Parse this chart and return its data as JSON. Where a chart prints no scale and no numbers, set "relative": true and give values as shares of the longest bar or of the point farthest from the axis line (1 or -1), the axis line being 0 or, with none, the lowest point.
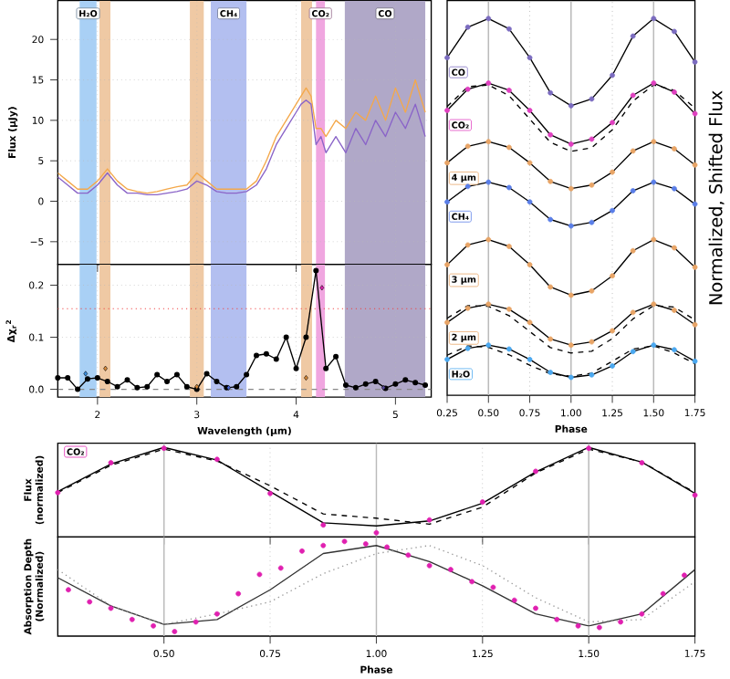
{
  "chart_data": [
    {
      "type": "line",
      "ylabel": "Flux (µJy)",
      "x": [
        1.6,
        1.7,
        1.8,
        1.9,
        2.0,
        2.1,
        2.2,
        2.3,
        2.4,
        2.5,
        2.6,
        2.7,
        2.8,
        2.9,
        3.0,
        3.1,
        3.2,
        3.3,
        3.4,
        3.5,
        3.6,
        3.7,
        3.8,
        3.9,
        4.0,
        4.05,
        4.1,
        4.15,
        4.2,
        4.25,
        4.3,
        4.35,
        4.4,
        4.5,
        4.6,
        4.7,
        4.8,
        4.9,
        5.0,
        5.1,
        5.2,
        5.3
      ],
      "series": [
        {
          "color": "#f4a84a",
          "values": [
            3.5,
            2.5,
            1.5,
            1.5,
            2.5,
            4,
            2.5,
            1.5,
            1.2,
            1,
            1.2,
            1.5,
            1.8,
            2,
            3.5,
            2.5,
            1.5,
            1.5,
            1.5,
            1.5,
            2.5,
            5,
            8,
            10,
            12,
            13,
            14,
            13,
            9,
            9,
            8,
            9,
            10,
            9,
            11,
            10,
            13,
            10,
            14,
            11,
            15,
            11
          ]
        },
        {
          "color": "#8a64c8",
          "values": [
            3,
            2,
            1,
            1,
            2,
            3.5,
            2,
            1,
            1,
            0.8,
            0.8,
            1,
            1.2,
            1.5,
            2.5,
            2,
            1.2,
            1,
            1,
            1.2,
            2,
            4,
            7,
            9,
            11,
            12,
            12.5,
            12,
            7,
            8,
            6,
            7,
            8,
            6,
            9,
            7,
            10,
            8,
            11,
            9,
            12,
            8
          ]
        }
      ],
      "xlim": [
        1.6,
        5.36
      ],
      "ylim": [
        -7.8,
        24.8
      ],
      "xticks": [
        {
          "value": 2,
          "label": null
        },
        {
          "value": 3,
          "label": null
        },
        {
          "value": 4,
          "label": null
        },
        {
          "value": 5,
          "label": null
        }
      ],
      "yticks": [
        {
          "value": -5,
          "label": "−5"
        },
        0,
        5,
        10,
        15,
        20
      ],
      "tick_labels": "y",
      "grid": true,
      "marker": "none",
      "bands": [
        {
          "axis": "x",
          "from": 1.82,
          "to": 1.99,
          "label": "H₂O",
          "color": "#a9d0f5"
        },
        {
          "axis": "x",
          "from": 2.02,
          "to": 2.13,
          "color": "#efc9a4"
        },
        {
          "axis": "x",
          "from": 2.93,
          "to": 3.07,
          "color": "#efc9a4"
        },
        {
          "axis": "x",
          "from": 3.14,
          "to": 3.5,
          "label": "CH₄",
          "color": "#b3bff0"
        },
        {
          "axis": "x",
          "from": 4.05,
          "to": 4.16,
          "color": "#efc9a4"
        },
        {
          "axis": "x",
          "from": 4.2,
          "to": 4.29,
          "label": "CO₂",
          "color": "#f0a6e0"
        },
        {
          "axis": "x",
          "from": 4.49,
          "to": 5.3,
          "label": "CO",
          "color": "#b0a8c8"
        }
      ]
    },
    {
      "type": "line",
      "xlabel": "Wavelength (µm)",
      "ylabel": "Δχ$_{r}$$^{2}$",
      "x": [
        1.6,
        1.7,
        1.8,
        1.9,
        2.0,
        2.1,
        2.2,
        2.3,
        2.4,
        2.5,
        2.6,
        2.7,
        2.8,
        2.9,
        3.0,
        3.1,
        3.2,
        3.3,
        3.4,
        3.5,
        3.6,
        3.7,
        3.8,
        3.9,
        4.0,
        4.1,
        4.2,
        4.3,
        4.4,
        4.5,
        4.6,
        4.7,
        4.8,
        4.9,
        5.0,
        5.1,
        5.2,
        5.3
      ],
      "series": [
        {
          "color": "#000000",
          "marker": "circle",
          "values": [
            0.022,
            0.022,
            0.0,
            0.02,
            0.022,
            0.015,
            0.005,
            0.018,
            0.003,
            0.005,
            0.028,
            0.015,
            0.028,
            0.005,
            0.0,
            0.03,
            0.015,
            0.003,
            0.005,
            0.028,
            0.065,
            0.068,
            0.058,
            0.1,
            0.04,
            0.1,
            0.228,
            0.04,
            0.063,
            0.008,
            0.003,
            0.01,
            0.015,
            0.002,
            0.01,
            0.018,
            0.013,
            0.008
          ]
        },
        {
          "type": "scatter",
          "marker": "diamond",
          "x": [
            1.88,
            2.08,
            3.0,
            3.32,
            4.1,
            4.26,
            4.88
          ],
          "values": [
            0.03,
            0.04,
            0.005,
            0.003,
            0.022,
            0.195,
            0.003
          ],
          "colors": [
            "#3a8fe0",
            "#d98a3a",
            "#d98a3a",
            "#4a68d8",
            "#d98a3a",
            "#e020b0",
            "#5a4aa0"
          ]
        }
      ],
      "xlim": [
        1.6,
        5.36
      ],
      "ylim": [
        -0.015,
        0.24
      ],
      "xticks": [
        2,
        3,
        4,
        5
      ],
      "yticks": [
        {
          "value": 0,
          "label": "0.0"
        },
        {
          "value": 0.1,
          "label": "0.1"
        },
        {
          "value": 0.2,
          "label": "0.2"
        }
      ],
      "grid": true,
      "ref_lines": [
        {
          "axis": "y",
          "value": 0.155,
          "color": "#f04040",
          "line_style": "dotted"
        },
        {
          "axis": "y",
          "value": 0,
          "color": "#888888",
          "line_style": "dashed"
        }
      ],
      "bands": [
        {
          "axis": "x",
          "from": 1.82,
          "to": 1.99,
          "color": "#a9d0f5"
        },
        {
          "axis": "x",
          "from": 2.02,
          "to": 2.13,
          "color": "#efc9a4"
        },
        {
          "axis": "x",
          "from": 2.93,
          "to": 3.07,
          "color": "#efc9a4"
        },
        {
          "axis": "x",
          "from": 3.14,
          "to": 3.5,
          "color": "#b3bff0"
        },
        {
          "axis": "x",
          "from": 4.05,
          "to": 4.16,
          "color": "#efc9a4"
        },
        {
          "axis": "x",
          "from": 4.2,
          "to": 4.29,
          "color": "#f0a6e0"
        },
        {
          "axis": "x",
          "from": 4.49,
          "to": 5.3,
          "color": "#b0a8c8"
        }
      ]
    },
    {
      "type": "line",
      "relative": true,
      "legend": "left",
      "xlabel": "Phase",
      "ylabel": "Normalized, Shifted Flux",
      "x": [
        0.25,
        0.375,
        0.5,
        0.625,
        0.75,
        0.875,
        1.0,
        1.125,
        1.25,
        1.375,
        1.5,
        1.625,
        1.75
      ],
      "series": [
        {
          "type": "scatter",
          "marker": "circle",
          "name": "CO",
          "color": "#7b6cc0",
          "values": [
            0.891,
            0.976,
            1.0,
            0.971,
            0.891,
            0.793,
            0.757,
            0.776,
            0.842,
            0.951,
            1.0,
            0.964,
            0.879
          ]
        },
        {
          "color": "#000000",
          "marker": "none",
          "values": [
            0.891,
            0.976,
            1.0,
            0.971,
            0.891,
            0.793,
            0.757,
            0.776,
            0.842,
            0.951,
            1.0,
            0.964,
            0.879
          ]
        },
        {
          "type": "scatter",
          "marker": "circle",
          "name": "CO₂",
          "color": "#e040c0",
          "values": [
            0.744,
            0.803,
            0.82,
            0.8,
            0.744,
            0.676,
            0.65,
            0.664,
            0.71,
            0.786,
            0.82,
            0.795,
            0.735
          ]
        },
        {
          "color": "#000000",
          "marker": "none",
          "values": [
            0.744,
            0.803,
            0.82,
            0.8,
            0.744,
            0.676,
            0.65,
            0.664,
            0.71,
            0.786,
            0.82,
            0.795,
            0.735
          ]
        },
        {
          "color": "#000000",
          "marker": "none",
          "line_style": "dashed",
          "values": [
            0.755,
            0.81,
            0.815,
            0.785,
            0.72,
            0.655,
            0.63,
            0.64,
            0.69,
            0.77,
            0.815,
            0.8,
            0.75
          ]
        },
        {
          "type": "scatter",
          "marker": "circle",
          "name": "4 µm",
          "color": "#e8a466",
          "values": [
            0.598,
            0.644,
            0.657,
            0.641,
            0.598,
            0.546,
            0.526,
            0.536,
            0.572,
            0.631,
            0.657,
            0.637,
            0.592
          ]
        },
        {
          "color": "#000000",
          "marker": "none",
          "values": [
            0.598,
            0.644,
            0.657,
            0.641,
            0.598,
            0.546,
            0.526,
            0.536,
            0.572,
            0.631,
            0.657,
            0.637,
            0.592
          ]
        },
        {
          "type": "scatter",
          "marker": "circle",
          "name": "CH₄",
          "color": "#5a7ee8",
          "values": [
            0.489,
            0.532,
            0.544,
            0.529,
            0.489,
            0.44,
            0.422,
            0.432,
            0.465,
            0.52,
            0.544,
            0.526,
            0.483
          ]
        },
        {
          "color": "#000000",
          "marker": "none",
          "values": [
            0.489,
            0.532,
            0.544,
            0.529,
            0.489,
            0.44,
            0.422,
            0.432,
            0.465,
            0.52,
            0.544,
            0.526,
            0.483
          ]
        },
        {
          "type": "scatter",
          "marker": "circle",
          "name": "3 µm",
          "color": "#e8a466",
          "values": [
            0.314,
            0.369,
            0.384,
            0.365,
            0.314,
            0.252,
            0.229,
            0.241,
            0.283,
            0.353,
            0.384,
            0.361,
            0.307
          ]
        },
        {
          "color": "#000000",
          "marker": "none",
          "values": [
            0.314,
            0.369,
            0.384,
            0.365,
            0.314,
            0.252,
            0.229,
            0.241,
            0.283,
            0.353,
            0.384,
            0.361,
            0.307
          ]
        },
        {
          "type": "scatter",
          "marker": "circle",
          "name": "2 µm",
          "color": "#e8a466",
          "values": [
            0.153,
            0.193,
            0.204,
            0.19,
            0.153,
            0.107,
            0.09,
            0.099,
            0.13,
            0.181,
            0.204,
            0.187,
            0.147
          ]
        },
        {
          "color": "#000000",
          "marker": "none",
          "values": [
            0.153,
            0.193,
            0.204,
            0.19,
            0.153,
            0.107,
            0.09,
            0.099,
            0.13,
            0.181,
            0.204,
            0.187,
            0.147
          ]
        },
        {
          "color": "#000000",
          "marker": "none",
          "line_style": "dashed",
          "values": [
            0.165,
            0.2,
            0.198,
            0.172,
            0.128,
            0.083,
            0.068,
            0.073,
            0.108,
            0.163,
            0.2,
            0.196,
            0.16
          ]
        },
        {
          "type": "scatter",
          "marker": "circle",
          "name": "H₂O",
          "color": "#4aa8f0",
          "values": [
            0.05,
            0.081,
            0.09,
            0.079,
            0.05,
            0.014,
            0.0,
            0.007,
            0.032,
            0.072,
            0.09,
            0.077,
            0.045
          ]
        },
        {
          "color": "#000000",
          "marker": "none",
          "values": [
            0.05,
            0.081,
            0.09,
            0.079,
            0.05,
            0.014,
            0.0,
            0.007,
            0.032,
            0.072,
            0.09,
            0.077,
            0.045
          ]
        },
        {
          "color": "#000000",
          "marker": "none",
          "line_style": "dashed",
          "values": [
            0.062,
            0.088,
            0.084,
            0.063,
            0.034,
            0.01,
            0.003,
            0.012,
            0.045,
            0.079,
            0.088,
            0.068,
            0.038
          ]
        }
      ],
      "xlim": [
        0.25,
        1.75
      ],
      "xticks": [
        {
          "value": 0.25,
          "label": "0.25"
        },
        {
          "value": 0.5,
          "label": "0.50"
        },
        {
          "value": 0.75,
          "label": "0.75"
        },
        {
          "value": 1.0,
          "label": "1.00"
        },
        {
          "value": 1.25,
          "label": "1.25"
        },
        {
          "value": 1.5,
          "label": "1.50"
        },
        {
          "value": 1.75,
          "label": "1.75"
        }
      ],
      "tick_labels": "x",
      "ref_lines": [
        {
          "axis": "x",
          "value": 0.5,
          "color": "#bbbbbb"
        },
        {
          "axis": "x",
          "value": 0.75,
          "color": "#bbbbbb",
          "line_style": "dotted"
        },
        {
          "axis": "x",
          "value": 1.0,
          "color": "#bbbbbb"
        },
        {
          "axis": "x",
          "value": 1.25,
          "color": "#bbbbbb",
          "line_style": "dotted"
        },
        {
          "axis": "x",
          "value": 1.5,
          "color": "#bbbbbb"
        }
      ]
    },
    {
      "type": "line",
      "relative": true,
      "legend": "top left",
      "ylabel": "Flux (normalized)",
      "x": [
        0.25,
        0.375,
        0.5,
        0.625,
        0.75,
        0.875,
        1.0,
        1.125,
        1.25,
        1.375,
        1.5,
        1.625,
        1.75
      ],
      "series": [
        {
          "type": "scatter",
          "marker": "circle",
          "name": "CO₂",
          "color": "#e020b0",
          "values": [
            0.47,
            0.82,
            0.99,
            0.86,
            0.46,
            0.09,
            0.0,
            0.15,
            0.36,
            0.72,
            0.99,
            0.82,
            0.44
          ]
        },
        {
          "color": "#000000",
          "marker": "none",
          "values": [
            0.483,
            0.805,
            1.0,
            0.851,
            0.483,
            0.115,
            0.08,
            0.138,
            0.345,
            0.713,
            1.0,
            0.828,
            0.46
          ]
        },
        {
          "color": "#000000",
          "marker": "none",
          "line_style": "dashed",
          "values": [
            0.47,
            0.79,
            0.98,
            0.84,
            0.55,
            0.22,
            0.17,
            0.1,
            0.3,
            0.7,
            0.98,
            0.83,
            0.47
          ]
        }
      ],
      "xlim": [
        0.25,
        1.75
      ],
      "xticks": [
        {
          "value": 0.5,
          "label": null
        },
        {
          "value": 0.75,
          "label": null
        },
        {
          "value": 1.0,
          "label": null
        },
        {
          "value": 1.25,
          "label": null
        },
        {
          "value": 1.5,
          "label": null
        }
      ],
      "tick_labels": false,
      "ref_lines": [
        {
          "axis": "x",
          "value": 0.5,
          "color": "#bbbbbb"
        },
        {
          "axis": "x",
          "value": 0.75,
          "color": "#bbbbbb",
          "line_style": "dotted"
        },
        {
          "axis": "x",
          "value": 1.0,
          "color": "#bbbbbb"
        },
        {
          "axis": "x",
          "value": 1.25,
          "color": "#bbbbbb",
          "line_style": "dotted"
        },
        {
          "axis": "x",
          "value": 1.5,
          "color": "#bbbbbb"
        }
      ]
    },
    {
      "type": "line",
      "relative": true,
      "xlabel": "Phase",
      "ylabel": "Absorption Depth (Normalized)",
      "x": [
        0.25,
        0.375,
        0.5,
        0.625,
        0.75,
        0.875,
        1.0,
        1.125,
        1.25,
        1.375,
        1.5,
        1.625,
        1.75
      ],
      "series": [
        {
          "color": "#333333",
          "marker": "none",
          "values": [
            0.598,
            0.286,
            0.08,
            0.134,
            0.464,
            0.866,
            0.955,
            0.777,
            0.509,
            0.196,
            0.063,
            0.196,
            0.688
          ]
        },
        {
          "color": "#999999",
          "marker": "none",
          "line_style": "dotted",
          "values": [
            0.688,
            0.286,
            0.08,
            0.196,
            0.33,
            0.643,
            0.866,
            0.955,
            0.732,
            0.375,
            0.107,
            0.134,
            0.554
          ]
        },
        {
          "type": "scatter",
          "marker": "circle",
          "color": "#e020b0",
          "x": [
            0.275,
            0.325,
            0.375,
            0.425,
            0.475,
            0.525,
            0.575,
            0.625,
            0.675,
            0.725,
            0.775,
            0.825,
            0.875,
            0.925,
            0.975,
            1.025,
            1.075,
            1.125,
            1.175,
            1.225,
            1.275,
            1.325,
            1.375,
            1.425,
            1.475,
            1.525,
            1.575,
            1.625,
            1.675,
            1.725
          ],
          "values": [
            0.464,
            0.33,
            0.259,
            0.134,
            0.063,
            0.0,
            0.107,
            0.196,
            0.42,
            0.634,
            0.705,
            0.893,
            0.955,
            1.0,
            0.973,
            0.938,
            0.848,
            0.732,
            0.688,
            0.554,
            0.491,
            0.348,
            0.259,
            0.134,
            0.063,
            0.045,
            0.107,
            0.196,
            0.42,
            0.625
          ]
        }
      ],
      "xlim": [
        0.25,
        1.75
      ],
      "xticks": [
        {
          "value": 0.5,
          "label": "0.50"
        },
        {
          "value": 0.75,
          "label": "0.75"
        },
        {
          "value": 1.0,
          "label": "1.00"
        },
        {
          "value": 1.25,
          "label": "1.25"
        },
        {
          "value": 1.5,
          "label": "1.50"
        },
        {
          "value": 1.75,
          "label": "1.75"
        }
      ],
      "tick_labels": "x",
      "ref_lines": [
        {
          "axis": "x",
          "value": 0.5,
          "color": "#bbbbbb"
        },
        {
          "axis": "x",
          "value": 0.75,
          "color": "#bbbbbb",
          "line_style": "dotted"
        },
        {
          "axis": "x",
          "value": 1.0,
          "color": "#bbbbbb"
        },
        {
          "axis": "x",
          "value": 1.25,
          "color": "#bbbbbb",
          "line_style": "dotted"
        },
        {
          "axis": "x",
          "value": 1.5,
          "color": "#bbbbbb"
        }
      ]
    }
  ]
}
